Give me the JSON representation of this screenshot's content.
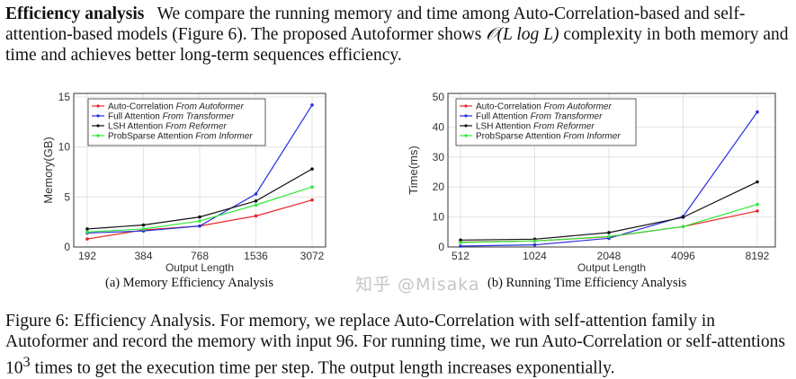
{
  "paragraph": {
    "heading": "Efficiency analysis",
    "text_before_math": "We compare the running memory and time among Auto-Correlation-based and self-attention-based models (Figure 6). The proposed Autoformer shows ",
    "math": "𝒪(L log L)",
    "text_after_math": " complexity in both memory and time and achieves better long-term sequences efficiency."
  },
  "caption": {
    "before_sup": "Figure 6: Efficiency Analysis. For memory, we replace Auto-Correlation with self-attention family in Autoformer and record the memory with input 96. For running time, we run Auto-Correlation or self-attentions 10",
    "sup": "3",
    "after_sup": " times to get the execution time per step. The output length increases exponentially."
  },
  "watermark": "知乎 @Misaka",
  "chart_data": [
    {
      "type": "line",
      "subtitle": "(a) Memory Efficiency Analysis",
      "xlabel": "Output Length",
      "ylabel": "Memory(GB)",
      "categories": [
        "192",
        "384",
        "768",
        "1536",
        "3072"
      ],
      "ylim": [
        0,
        15
      ],
      "yticks": [
        0,
        5,
        10,
        15
      ],
      "grid": true,
      "legend": "top-left",
      "series": [
        {
          "name": "Auto-Correlation",
          "source": "From Autoformer",
          "color": "#e8262a",
          "values": [
            0.8,
            1.7,
            2.1,
            3.1,
            4.7
          ]
        },
        {
          "name": "Full Attention",
          "source": "From Transformer",
          "color": "#2b2fe0",
          "values": [
            1.4,
            1.6,
            2.1,
            5.3,
            14.2
          ]
        },
        {
          "name": "LSH Attention",
          "source": "From Reformer",
          "color": "#111111",
          "values": [
            1.8,
            2.2,
            3.0,
            4.6,
            7.8
          ]
        },
        {
          "name": "ProbSparse Attention",
          "source": "From Informer",
          "color": "#2ee83a",
          "values": [
            1.5,
            1.8,
            2.6,
            4.2,
            6.0
          ]
        }
      ]
    },
    {
      "type": "line",
      "subtitle": "(b) Running Time Efficiency Analysis",
      "xlabel": "Output Length",
      "ylabel": "Time(ms)",
      "categories": [
        "512",
        "1024",
        "2048",
        "4096",
        "8192"
      ],
      "ylim": [
        0,
        50
      ],
      "yticks": [
        0,
        10,
        20,
        30,
        40,
        50
      ],
      "grid": true,
      "legend": "top-left",
      "series": [
        {
          "name": "Auto-Correlation",
          "source": "From Autoformer",
          "color": "#e8262a",
          "values": [
            1.6,
            2.0,
            3.4,
            6.8,
            12.0
          ]
        },
        {
          "name": "Full Attention",
          "source": "From Transformer",
          "color": "#2b2fe0",
          "values": [
            0.3,
            0.7,
            2.9,
            10.2,
            45.0
          ]
        },
        {
          "name": "LSH Attention",
          "source": "From Reformer",
          "color": "#111111",
          "values": [
            2.3,
            2.6,
            4.8,
            9.9,
            21.7
          ]
        },
        {
          "name": "ProbSparse Attention",
          "source": "From Informer",
          "color": "#2ee83a",
          "values": [
            1.5,
            2.0,
            3.5,
            6.8,
            14.2
          ]
        }
      ]
    }
  ]
}
